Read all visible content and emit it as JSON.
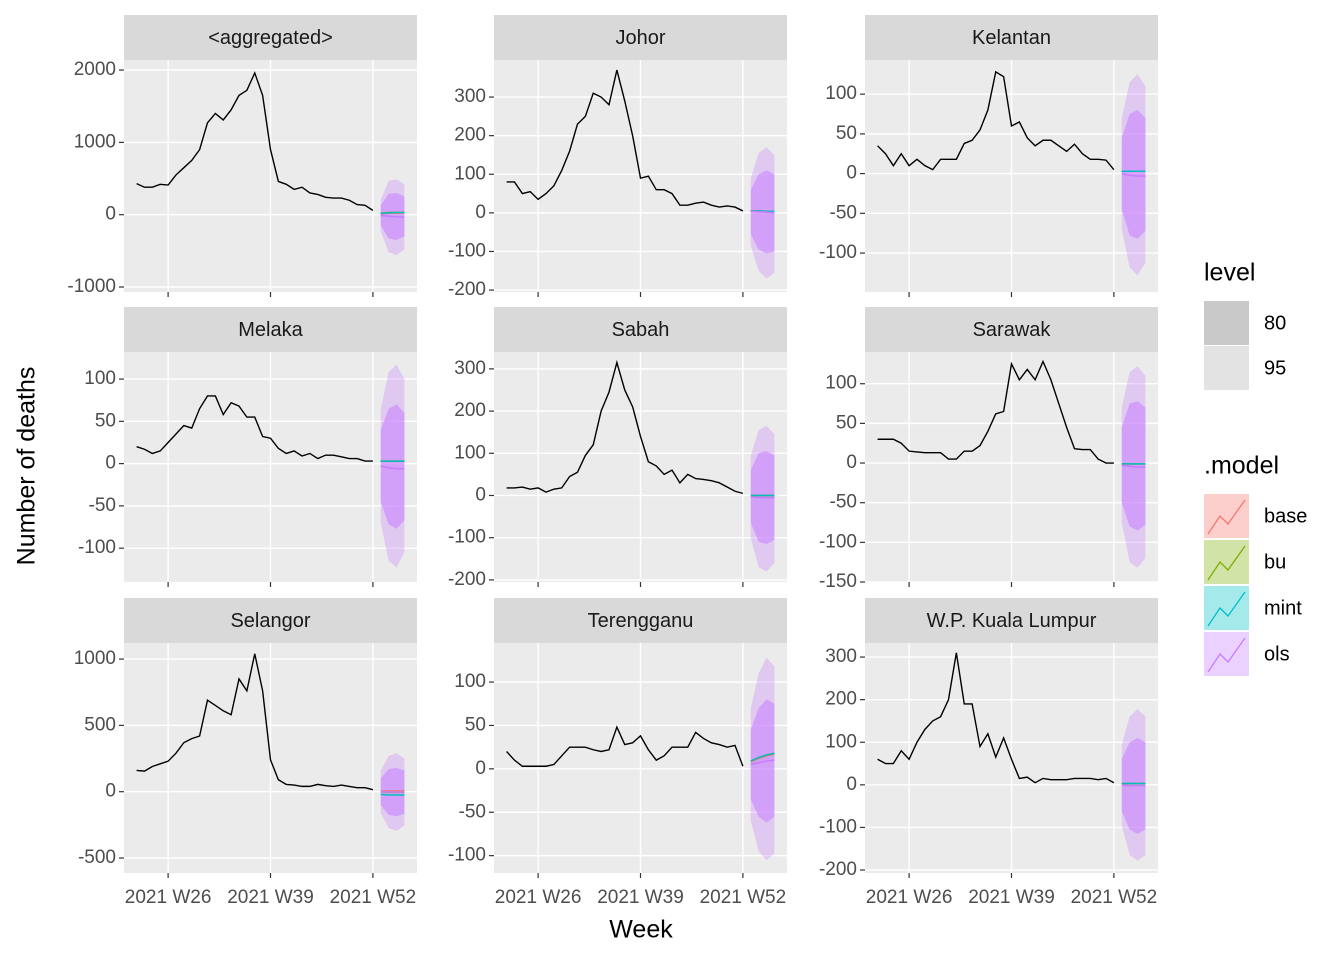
{
  "chart_data": {
    "type": "line",
    "x_label": "Week",
    "y_label": "Number of deaths",
    "xlim": [
      20.4,
      57.6
    ],
    "xticks": [
      {
        "value": 26,
        "label": "2021 W26"
      },
      {
        "value": 39,
        "label": "2021 W39"
      },
      {
        "value": 52,
        "label": "2021 W52"
      }
    ],
    "x": [
      22,
      23,
      24,
      25,
      26,
      27,
      28,
      29,
      30,
      31,
      32,
      33,
      34,
      35,
      36,
      37,
      38,
      39,
      40,
      41,
      42,
      43,
      44,
      45,
      46,
      47,
      48,
      49,
      50,
      51,
      52
    ],
    "forecast_x": [
      53,
      54,
      55,
      56
    ],
    "level_legend": {
      "title": "level",
      "items": [
        {
          "label": "80",
          "color": "#c9c9c9"
        },
        {
          "label": "95",
          "color": "#e3e3e3"
        }
      ]
    },
    "model_legend": {
      "title": ".model",
      "items": [
        {
          "name": "base",
          "color": "#F8766D"
        },
        {
          "name": "bu",
          "color": "#7CAE00"
        },
        {
          "name": "mint",
          "color": "#00BFC4"
        },
        {
          "name": "ols",
          "color": "#C77CFF"
        }
      ]
    },
    "facets": [
      {
        "title": "<aggregated>",
        "ylim": [
          -1069,
          2139
        ],
        "yticks": [
          -1000,
          0,
          1000,
          2000
        ],
        "values": [
          430,
          380,
          380,
          420,
          410,
          550,
          650,
          750,
          900,
          1270,
          1400,
          1310,
          1450,
          1650,
          1720,
          1960,
          1650,
          900,
          460,
          420,
          350,
          380,
          300,
          280,
          240,
          230,
          230,
          200,
          140,
          130,
          60
        ],
        "means": [
          [
            10,
            20,
            20,
            25
          ],
          [
            20,
            30,
            30,
            30
          ],
          [
            20,
            25,
            30,
            30
          ],
          [
            -10,
            -20,
            -30,
            -35
          ]
        ],
        "intervals": [
          {
            "lo": [
              -150,
              -330,
              -350,
              -300
            ],
            "hi": [
              130,
              290,
              300,
              250
            ]
          },
          {
            "lo": [
              -230,
              -520,
              -560,
              -480
            ],
            "hi": [
              210,
              470,
              490,
              420
            ]
          }
        ]
      },
      {
        "title": "Johor",
        "ylim": [
          -205,
          396
        ],
        "yticks": [
          -200,
          -100,
          0,
          100,
          200,
          300
        ],
        "values": [
          80,
          80,
          50,
          55,
          35,
          50,
          70,
          110,
          160,
          230,
          250,
          310,
          300,
          280,
          370,
          290,
          200,
          90,
          95,
          60,
          60,
          50,
          20,
          20,
          25,
          28,
          20,
          15,
          18,
          15,
          5
        ],
        "means": [
          [
            5,
            5,
            4,
            4
          ],
          [
            5,
            5,
            4,
            4
          ],
          [
            5,
            5,
            4,
            4
          ],
          [
            5,
            3,
            2,
            0
          ]
        ],
        "intervals": [
          {
            "lo": [
              -55,
              -95,
              -105,
              -100
            ],
            "hi": [
              60,
              100,
              110,
              100
            ]
          },
          {
            "lo": [
              -85,
              -150,
              -170,
              -155
            ],
            "hi": [
              90,
              155,
              170,
              150
            ]
          }
        ]
      },
      {
        "title": "Kelantan",
        "ylim": [
          -149,
          143
        ],
        "yticks": [
          -100,
          -50,
          0,
          50,
          100
        ],
        "values": [
          35,
          25,
          10,
          25,
          10,
          18,
          10,
          5,
          18,
          18,
          18,
          38,
          42,
          55,
          80,
          128,
          122,
          60,
          65,
          45,
          35,
          42,
          42,
          35,
          28,
          37,
          25,
          18,
          18,
          17,
          5
        ],
        "means": [
          [
            3,
            3,
            3,
            3
          ],
          [
            3,
            3,
            3,
            3
          ],
          [
            3,
            3,
            3,
            3
          ],
          [
            0,
            -2,
            -3,
            -3
          ]
        ],
        "intervals": [
          {
            "lo": [
              -45,
              -78,
              -82,
              -72
            ],
            "hi": [
              45,
              75,
              80,
              70
            ]
          },
          {
            "lo": [
              -70,
              -118,
              -128,
              -112
            ],
            "hi": [
              70,
              115,
              125,
              110
            ]
          }
        ]
      },
      {
        "title": "Melaka",
        "ylim": [
          -140,
          132
        ],
        "yticks": [
          -100,
          -50,
          0,
          50,
          100
        ],
        "values": [
          20,
          17,
          12,
          15,
          25,
          35,
          45,
          42,
          65,
          80,
          80,
          58,
          72,
          68,
          55,
          55,
          32,
          30,
          18,
          12,
          15,
          9,
          12,
          6,
          10,
          10,
          8,
          6,
          6,
          3,
          3
        ],
        "means": [
          [
            3,
            3,
            3,
            3
          ],
          [
            3,
            3,
            3,
            3
          ],
          [
            3,
            3,
            3,
            3
          ],
          [
            -3,
            -5,
            -6,
            -6
          ]
        ],
        "intervals": [
          {
            "lo": [
              -45,
              -72,
              -77,
              -67
            ],
            "hi": [
              40,
              65,
              70,
              60
            ]
          },
          {
            "lo": [
              -70,
              -115,
              -123,
              -105
            ],
            "hi": [
              65,
              108,
              117,
              100
            ]
          }
        ]
      },
      {
        "title": "Sabah",
        "ylim": [
          -205,
          340
        ],
        "yticks": [
          -200,
          -100,
          0,
          100,
          200,
          300
        ],
        "values": [
          18,
          18,
          20,
          15,
          18,
          8,
          15,
          18,
          45,
          55,
          95,
          120,
          200,
          245,
          315,
          250,
          210,
          140,
          80,
          70,
          50,
          60,
          30,
          50,
          40,
          38,
          35,
          30,
          20,
          10,
          5
        ],
        "means": [
          [
            0,
            0,
            0,
            0
          ],
          [
            0,
            0,
            0,
            0
          ],
          [
            0,
            0,
            0,
            0
          ],
          [
            -3,
            -5,
            -5,
            -5
          ]
        ],
        "intervals": [
          {
            "lo": [
              -65,
              -110,
              -115,
              -105
            ],
            "hi": [
              60,
              100,
              105,
              95
            ]
          },
          {
            "lo": [
              -100,
              -170,
              -180,
              -160
            ],
            "hi": [
              95,
              155,
              165,
              145
            ]
          }
        ]
      },
      {
        "title": "Sarawak",
        "ylim": [
          -150,
          140
        ],
        "yticks": [
          -150,
          -100,
          -50,
          0,
          50,
          100
        ],
        "values": [
          30,
          30,
          30,
          25,
          15,
          14,
          13,
          13,
          13,
          5,
          5,
          15,
          15,
          22,
          40,
          62,
          65,
          125,
          105,
          118,
          105,
          128,
          105,
          75,
          45,
          18,
          17,
          17,
          5,
          0,
          0
        ],
        "means": [
          [
            -1,
            -1,
            -1,
            -1
          ],
          [
            -1,
            -1,
            -1,
            -1
          ],
          [
            -1,
            -1,
            -1,
            -1
          ],
          [
            -3,
            -4,
            -5,
            -5
          ]
        ],
        "intervals": [
          {
            "lo": [
              -50,
              -80,
              -85,
              -78
            ],
            "hi": [
              45,
              75,
              78,
              70
            ]
          },
          {
            "lo": [
              -75,
              -125,
              -132,
              -120
            ],
            "hi": [
              70,
              115,
              122,
              110
            ]
          }
        ]
      },
      {
        "title": "Selangor",
        "ylim": [
          -613,
          1121
        ],
        "yticks": [
          -500,
          0,
          500,
          1000
        ],
        "values": [
          160,
          155,
          190,
          210,
          230,
          290,
          370,
          400,
          420,
          690,
          650,
          610,
          580,
          850,
          760,
          1040,
          760,
          240,
          90,
          55,
          50,
          40,
          40,
          55,
          45,
          40,
          50,
          40,
          30,
          30,
          15
        ],
        "means": [
          [
            5,
            5,
            5,
            5
          ],
          [
            0,
            -5,
            -5,
            -5
          ],
          [
            -20,
            -25,
            -25,
            -25
          ],
          [
            0,
            -2,
            -3,
            -3
          ]
        ],
        "intervals": [
          {
            "lo": [
              -100,
              -175,
              -185,
              -165
            ],
            "hi": [
              100,
              170,
              180,
              160
            ]
          },
          {
            "lo": [
              -160,
              -275,
              -295,
              -255
            ],
            "hi": [
              160,
              270,
              290,
              250
            ]
          }
        ]
      },
      {
        "title": "Terengganu",
        "ylim": [
          -120,
          145
        ],
        "yticks": [
          -100,
          -50,
          0,
          50,
          100
        ],
        "values": [
          20,
          10,
          3,
          3,
          3,
          3,
          5,
          15,
          25,
          25,
          25,
          22,
          20,
          22,
          48,
          28,
          30,
          38,
          22,
          10,
          15,
          25,
          25,
          25,
          42,
          35,
          30,
          28,
          25,
          27,
          3
        ],
        "means": [
          [
            8,
            12,
            15,
            17
          ],
          [
            9,
            13,
            16,
            18
          ],
          [
            9,
            13,
            16,
            18
          ],
          [
            5,
            7,
            9,
            10
          ]
        ],
        "intervals": [
          {
            "lo": [
              -35,
              -55,
              -62,
              -55
            ],
            "hi": [
              45,
              70,
              80,
              75
            ]
          },
          {
            "lo": [
              -60,
              -95,
              -105,
              -98
            ],
            "hi": [
              70,
              110,
              128,
              118
            ]
          }
        ]
      },
      {
        "title": "W.P. Kuala Lumpur",
        "ylim": [
          -207,
          333
        ],
        "yticks": [
          -200,
          -100,
          0,
          100,
          200,
          300
        ],
        "values": [
          60,
          50,
          50,
          80,
          60,
          100,
          130,
          150,
          160,
          200,
          310,
          190,
          190,
          90,
          120,
          65,
          110,
          60,
          15,
          18,
          5,
          15,
          12,
          12,
          12,
          15,
          15,
          15,
          12,
          15,
          5
        ],
        "means": [
          [
            3,
            3,
            3,
            3
          ],
          [
            3,
            3,
            3,
            3
          ],
          [
            3,
            3,
            3,
            3
          ],
          [
            0,
            -2,
            -2,
            -2
          ]
        ],
        "intervals": [
          {
            "lo": [
              -62,
              -105,
              -115,
              -105
            ],
            "hi": [
              60,
              100,
              110,
              100
            ]
          },
          {
            "lo": [
              -95,
              -165,
              -178,
              -165
            ],
            "hi": [
              95,
              160,
              178,
              160
            ]
          }
        ]
      }
    ]
  }
}
